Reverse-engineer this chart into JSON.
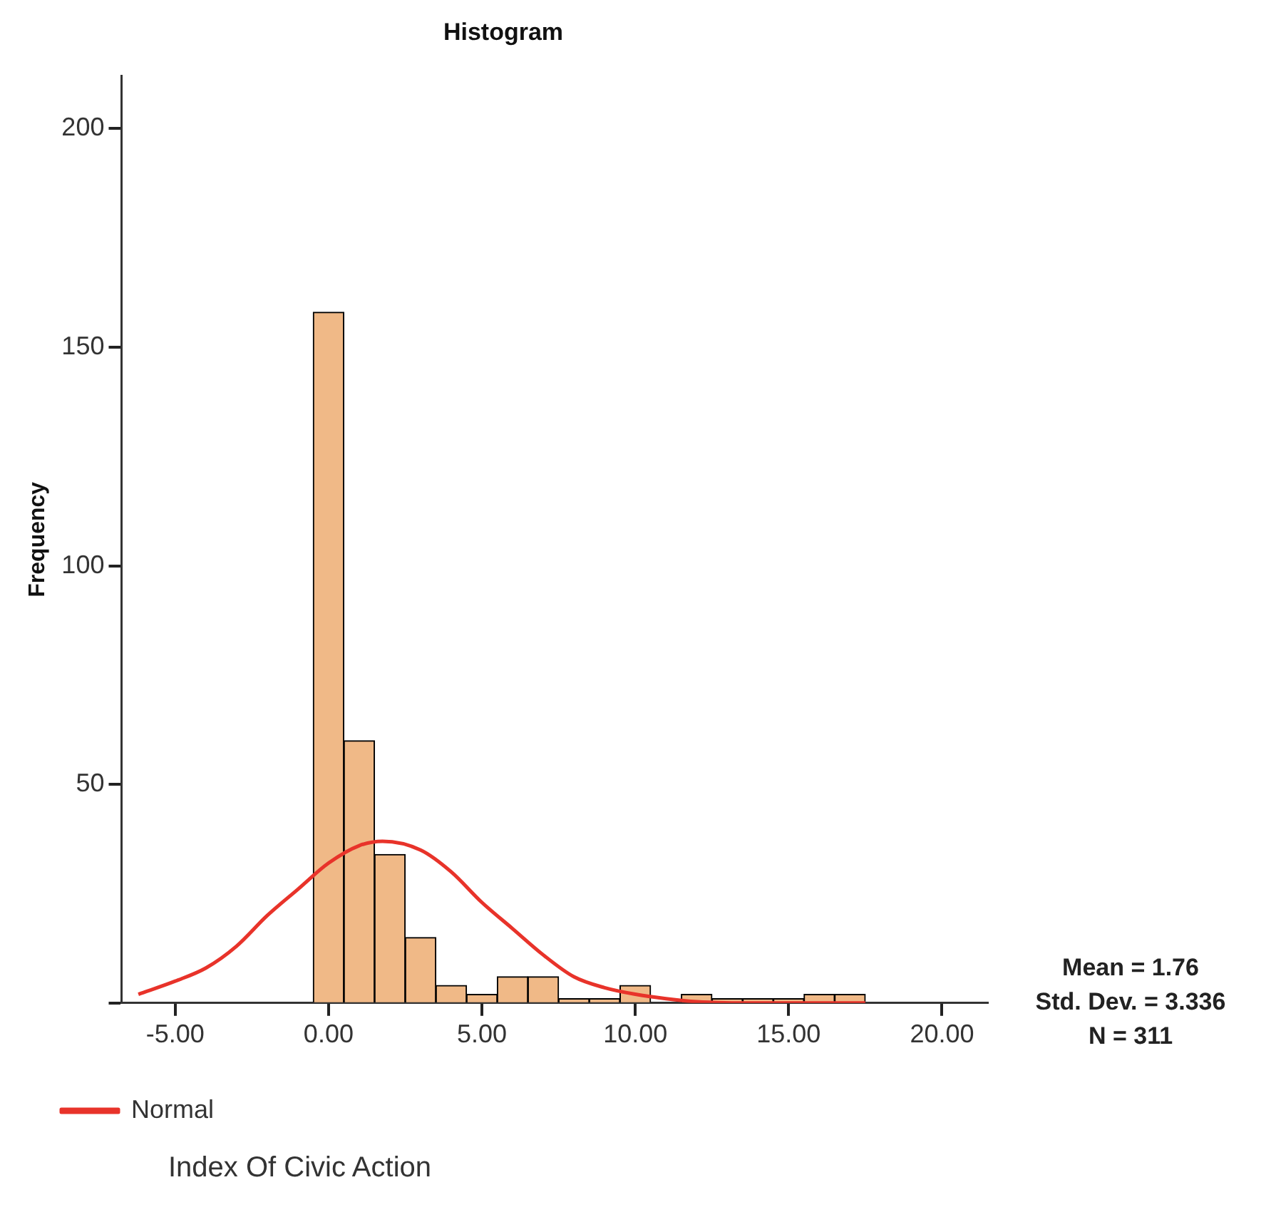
{
  "chart_data": {
    "type": "histogram",
    "title": "Histogram",
    "xlabel": "Index Of Civic Action",
    "ylabel": "Frequency",
    "bins": [
      -0.5,
      0.5,
      1.5,
      2.5,
      3.5,
      4.5,
      5.5,
      6.5,
      7.5,
      8.5,
      9.5,
      10.5,
      11.5,
      12.5,
      13.5,
      14.5,
      15.5,
      16.5,
      17.5
    ],
    "values": [
      158,
      60,
      34,
      15,
      4,
      2,
      6,
      6,
      1,
      1,
      4,
      0,
      2,
      1,
      1,
      1,
      2,
      2
    ],
    "color": "#f0b987",
    "series": [
      {
        "name": "Normal",
        "type": "line",
        "color": "#e8332a",
        "x": [
          -6.2,
          -5,
          -4,
          -3,
          -2,
          -1,
          0,
          1,
          1.76,
          3,
          4,
          5,
          6,
          7,
          8,
          9,
          10,
          11,
          12,
          14,
          17.5
        ],
        "values": [
          2,
          5,
          8,
          13,
          20,
          26,
          32,
          36,
          37,
          35,
          30,
          23,
          17,
          11,
          6,
          3.5,
          2,
          1,
          0.3,
          0,
          0
        ]
      }
    ],
    "xlim": [
      -6.75,
      21.5
    ],
    "xticks": [
      {
        "value": -5,
        "label": "-5.00"
      },
      {
        "value": 0,
        "label": "0.00"
      },
      {
        "value": 5,
        "label": "5.00"
      },
      {
        "value": 10,
        "label": "10.00"
      },
      {
        "value": 15,
        "label": "15.00"
      },
      {
        "value": 20,
        "label": "20.00"
      }
    ],
    "ylim": [
      0,
      212
    ],
    "yticks": [
      {
        "value": 0,
        "label": null
      },
      50,
      100,
      150,
      200
    ],
    "grid": false,
    "legend": "bottom left",
    "annotations": [
      "Mean = 1.76",
      "Std. Dev. = 3.336",
      "N = 311"
    ]
  }
}
